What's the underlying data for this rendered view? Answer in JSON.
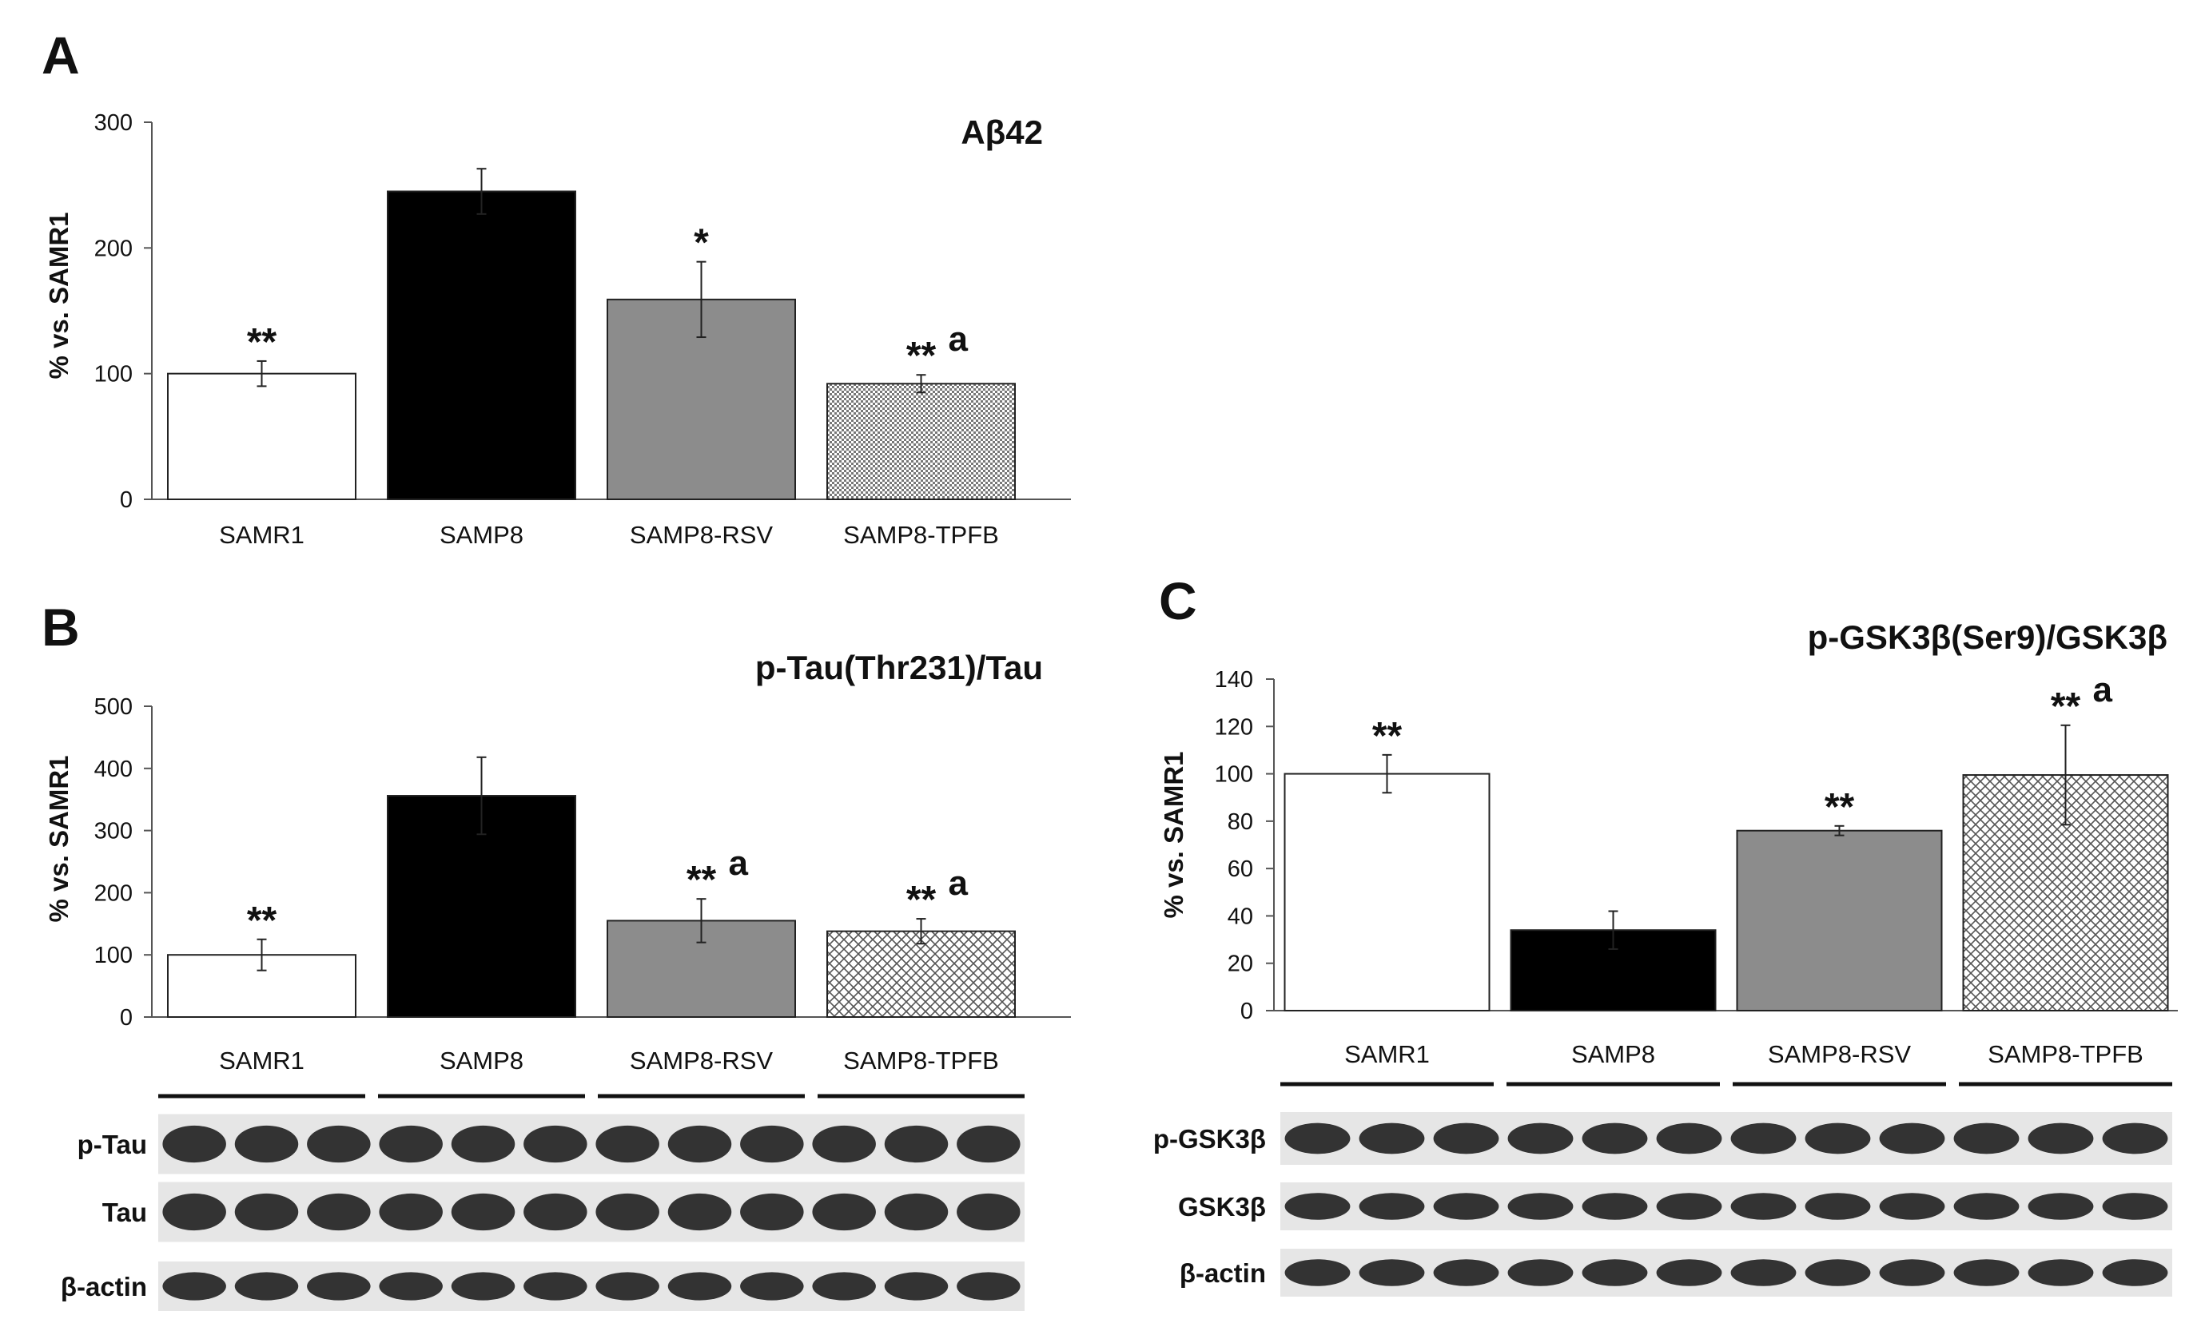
{
  "chart_data": [
    {
      "id": "A",
      "type": "bar",
      "panel_letter": "A",
      "title": "Aβ42",
      "ylabel": "% vs. SAMR1",
      "xlabel": "",
      "ylim": [
        0,
        300
      ],
      "yticks": [
        0,
        100,
        200,
        300
      ],
      "grid": false,
      "categories": [
        "SAMR1",
        "SAMP8",
        "SAMP8-RSV",
        "SAMP8-TPFB"
      ],
      "values": [
        100,
        245,
        159,
        92
      ],
      "errors": [
        10,
        18,
        30,
        7
      ],
      "significance": [
        "**",
        "",
        "*",
        "**"
      ],
      "superscript": [
        "",
        "",
        "",
        "a"
      ],
      "bar_fills": [
        "white",
        "black",
        "gray",
        "dots"
      ]
    },
    {
      "id": "B",
      "type": "bar",
      "panel_letter": "B",
      "title": "p-Tau(Thr231)/Tau",
      "ylabel": "% vs. SAMR1",
      "xlabel": "",
      "ylim": [
        0,
        500
      ],
      "yticks": [
        0,
        100,
        200,
        300,
        400,
        500
      ],
      "grid": false,
      "categories": [
        "SAMR1",
        "SAMP8",
        "SAMP8-RSV",
        "SAMP8-TPFB"
      ],
      "values": [
        100,
        356,
        155,
        138
      ],
      "errors": [
        25,
        62,
        35,
        20
      ],
      "significance": [
        "**",
        "",
        "**",
        "**"
      ],
      "superscript": [
        "",
        "",
        "a",
        "a"
      ],
      "bar_fills": [
        "white",
        "black",
        "gray",
        "crosshatch"
      ],
      "blot_rows": [
        "p-Tau",
        "Tau",
        "β-actin"
      ]
    },
    {
      "id": "C",
      "type": "bar",
      "panel_letter": "C",
      "title": "p-GSK3β(Ser9)/GSK3β",
      "ylabel": "% vs. SAMR1",
      "xlabel": "",
      "ylim": [
        0,
        140
      ],
      "yticks": [
        0,
        20,
        40,
        60,
        80,
        100,
        120,
        140
      ],
      "grid": false,
      "categories": [
        "SAMR1",
        "SAMP8",
        "SAMP8-RSV",
        "SAMP8-TPFB"
      ],
      "values": [
        100,
        34,
        76,
        99.5
      ],
      "errors": [
        8,
        8,
        2,
        21
      ],
      "significance": [
        "**",
        "",
        "**",
        "**"
      ],
      "superscript": [
        "",
        "",
        "",
        "a"
      ],
      "bar_fills": [
        "white",
        "black",
        "gray",
        "crosshatch"
      ],
      "blot_rows": [
        "p-GSK3β",
        "GSK3β",
        "β-actin"
      ]
    }
  ],
  "colors": {
    "gray_bar": "#8c8c8c",
    "black_bar": "#000000",
    "axis": "#555555",
    "blot_band": "#1a1a1a",
    "blot_background": "#e6e6e6"
  }
}
